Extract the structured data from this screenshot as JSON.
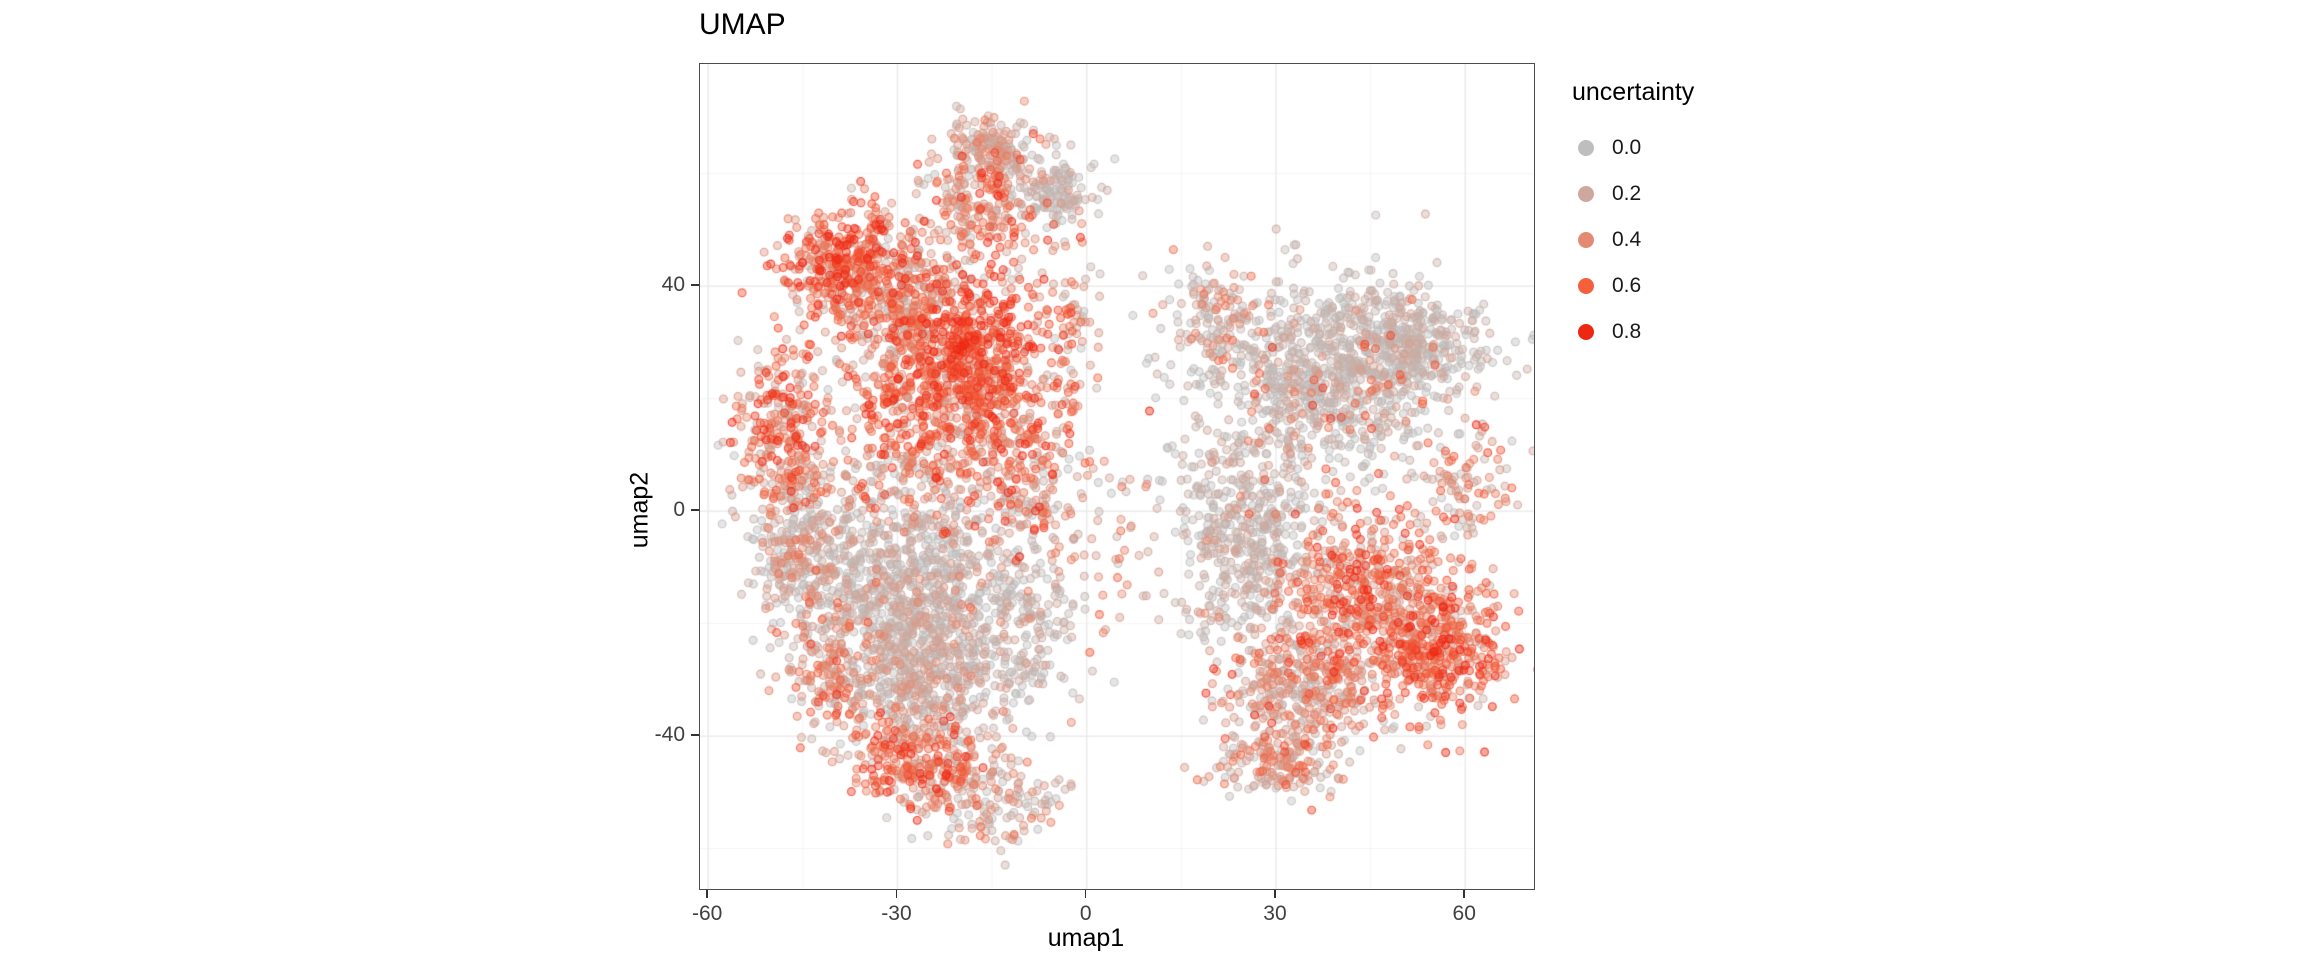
{
  "title": "UMAP",
  "axes": {
    "x_label": "umap1",
    "y_label": "umap2",
    "x_ticks": [
      -60,
      -30,
      0,
      30,
      60
    ],
    "y_ticks": [
      40,
      0,
      -40
    ],
    "x_minor": [
      -45,
      -15,
      15,
      45
    ],
    "y_minor": [
      60,
      20,
      -20,
      -60
    ],
    "x_domain": [
      -61.3,
      70.9
    ],
    "y_domain": [
      -67.2,
      79.5
    ]
  },
  "legend": {
    "title": "uncertainty",
    "entries": [
      {
        "label": "0.0",
        "u": 0.0
      },
      {
        "label": "0.2",
        "u": 0.2
      },
      {
        "label": "0.4",
        "u": 0.4
      },
      {
        "label": "0.6",
        "u": 0.6
      },
      {
        "label": "0.8",
        "u": 0.8
      }
    ]
  },
  "colors": {
    "background": "#FFFFFF",
    "panel_border": "#4D4D4D",
    "grid_major": "#E9E9E9",
    "grid_minor": "#F4F4F4",
    "tick": "#333333",
    "tick_label": "#404040",
    "gradient_stops": [
      {
        "t": 0.0,
        "c": "#BEBEBE"
      },
      {
        "t": 0.25,
        "c": "#CEA89D"
      },
      {
        "t": 0.5,
        "c": "#E58A72"
      },
      {
        "t": 0.75,
        "c": "#F4603D"
      },
      {
        "t": 1.0,
        "c": "#EF2612"
      }
    ]
  },
  "chart_data": {
    "type": "scatter",
    "title": "UMAP",
    "xlabel": "umap1",
    "ylabel": "umap2",
    "xlim": [
      -61,
      71
    ],
    "ylim": [
      -67,
      79
    ],
    "grid": true,
    "legend_position": "right",
    "color_variable": "uncertainty",
    "color_domain": [
      0,
      0.8
    ],
    "color_legend_values": [
      0.0,
      0.2,
      0.4,
      0.6,
      0.8
    ],
    "point_radius_px": 3.9,
    "point_alpha": 0.4,
    "n_points_approx": 8700,
    "clusters": [
      {
        "n": 900,
        "x": -28,
        "y": -12,
        "sx": 9,
        "sy": 10,
        "u": 0.08,
        "us": 0.12
      },
      {
        "n": 700,
        "x": -22,
        "y": 18,
        "sx": 9,
        "sy": 9,
        "u": 0.45,
        "us": 0.2
      },
      {
        "n": 450,
        "x": -20,
        "y": 30,
        "sx": 6,
        "sy": 6,
        "u": 0.6,
        "us": 0.18
      },
      {
        "n": 350,
        "x": -38,
        "y": 44,
        "sx": 5,
        "sy": 5,
        "u": 0.55,
        "us": 0.2
      },
      {
        "n": 300,
        "x": -30,
        "y": 38,
        "sx": 7,
        "sy": 6,
        "u": 0.25,
        "us": 0.2
      },
      {
        "n": 250,
        "x": -16,
        "y": 55,
        "sx": 5,
        "sy": 6,
        "u": 0.35,
        "us": 0.25
      },
      {
        "n": 150,
        "x": -14,
        "y": 65,
        "sx": 4,
        "sy": 3,
        "u": 0.15,
        "us": 0.15
      },
      {
        "n": 120,
        "x": -5,
        "y": 57,
        "sx": 3,
        "sy": 3,
        "u": 0.05,
        "us": 0.08
      },
      {
        "n": 300,
        "x": -48,
        "y": 12,
        "sx": 4,
        "sy": 8,
        "u": 0.4,
        "us": 0.22
      },
      {
        "n": 280,
        "x": -45,
        "y": -8,
        "sx": 4,
        "sy": 7,
        "u": 0.15,
        "us": 0.18
      },
      {
        "n": 150,
        "x": -40,
        "y": -28,
        "sx": 4,
        "sy": 6,
        "u": 0.35,
        "us": 0.2
      },
      {
        "n": 500,
        "x": -25,
        "y": -30,
        "sx": 8,
        "sy": 7,
        "u": 0.12,
        "us": 0.15
      },
      {
        "n": 260,
        "x": -27,
        "y": -45,
        "sx": 5,
        "sy": 4,
        "u": 0.5,
        "us": 0.2
      },
      {
        "n": 150,
        "x": -15,
        "y": -52,
        "sx": 6,
        "sy": 4,
        "u": 0.2,
        "us": 0.18
      },
      {
        "n": 120,
        "x": -8,
        "y": -20,
        "sx": 4,
        "sy": 8,
        "u": 0.1,
        "us": 0.1
      },
      {
        "n": 200,
        "x": -10,
        "y": 5,
        "sx": 5,
        "sy": 8,
        "u": 0.35,
        "us": 0.25
      },
      {
        "n": 80,
        "x": -3,
        "y": 35,
        "sx": 3,
        "sy": 8,
        "u": 0.4,
        "us": 0.25
      },
      {
        "n": 40,
        "x": 3,
        "y": -8,
        "sx": 4,
        "sy": 10,
        "u": 0.3,
        "us": 0.25
      },
      {
        "n": 800,
        "x": 38,
        "y": 25,
        "sx": 10,
        "sy": 8,
        "u": 0.06,
        "us": 0.1
      },
      {
        "n": 80,
        "x": 38,
        "y": 20,
        "sx": 9,
        "sy": 7,
        "u": 0.5,
        "us": 0.15
      },
      {
        "n": 300,
        "x": 52,
        "y": 30,
        "sx": 6,
        "sy": 5,
        "u": 0.08,
        "us": 0.1
      },
      {
        "n": 500,
        "x": 25,
        "y": -5,
        "sx": 6,
        "sy": 10,
        "u": 0.08,
        "us": 0.1
      },
      {
        "n": 600,
        "x": 45,
        "y": -15,
        "sx": 8,
        "sy": 8,
        "u": 0.45,
        "us": 0.2
      },
      {
        "n": 350,
        "x": 57,
        "y": -25,
        "sx": 5,
        "sy": 6,
        "u": 0.5,
        "us": 0.2
      },
      {
        "n": 400,
        "x": 35,
        "y": -32,
        "sx": 7,
        "sy": 6,
        "u": 0.3,
        "us": 0.22
      },
      {
        "n": 150,
        "x": 30,
        "y": -45,
        "sx": 5,
        "sy": 3,
        "u": 0.25,
        "us": 0.2
      },
      {
        "n": 120,
        "x": 20,
        "y": 35,
        "sx": 4,
        "sy": 5,
        "u": 0.2,
        "us": 0.2
      },
      {
        "n": 100,
        "x": 60,
        "y": 5,
        "sx": 4,
        "sy": 6,
        "u": 0.3,
        "us": 0.25
      }
    ]
  }
}
